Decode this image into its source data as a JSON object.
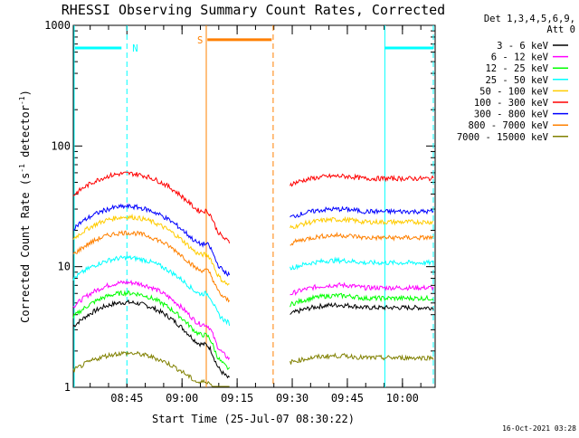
{
  "chart_data": {
    "type": "line",
    "title": "RHESSI Observing Summary Count Rates, Corrected",
    "xlabel": "Start Time (25-Jul-07 08:30:22)",
    "ylabel": "Corrected Count Rate (s",
    "ylabel_sup1": "-1",
    "ylabel_mid": " detector",
    "ylabel_sup2": "-1",
    "ylabel_end": ")",
    "yscale": "log",
    "ylim": [
      1,
      1000
    ],
    "y_ticks": [
      {
        "value": 1,
        "label": "1"
      },
      {
        "value": 10,
        "label": "10"
      },
      {
        "value": 100,
        "label": "100"
      },
      {
        "value": 1000,
        "label": "1000"
      }
    ],
    "x_range_minutes": [
      0,
      98.5
    ],
    "x_ticks": [
      {
        "minute": 14.6,
        "label": "08:45"
      },
      {
        "minute": 29.6,
        "label": "09:00"
      },
      {
        "minute": 44.6,
        "label": "09:15"
      },
      {
        "minute": 59.6,
        "label": "09:30"
      },
      {
        "minute": 74.6,
        "label": "09:45"
      },
      {
        "minute": 89.6,
        "label": "10:00"
      }
    ],
    "legend": {
      "header_line1": "Det 1,3,4,5,6,9,",
      "header_line2": "Att 0",
      "placement": "right"
    },
    "series": [
      {
        "name": "3 - 6 keV",
        "color": "#000000",
        "base": 1.62,
        "amp": 0.55
      },
      {
        "name": "6 - 12 keV",
        "color": "#ff00ff",
        "base": 2.0,
        "amp": 0.55
      },
      {
        "name": "12 - 25 keV",
        "color": "#00ff00",
        "base": 1.8,
        "amp": 0.55
      },
      {
        "name": "25 - 50 keV",
        "color": "#00ffff",
        "base": 2.47,
        "amp": 0.48
      },
      {
        "name": "50 - 100 keV",
        "color": "#ffcc00",
        "base": 3.25,
        "amp": 0.5
      },
      {
        "name": "100 - 300 keV",
        "color": "#ff0000",
        "base": 4.08,
        "amp": 0.5
      },
      {
        "name": "300 - 800 keV",
        "color": "#0000ff",
        "base": 3.45,
        "amp": 0.5
      },
      {
        "name": "800 - 7000 keV",
        "color": "#ff8000",
        "base": 2.95,
        "amp": 0.5
      },
      {
        "name": "7000 - 15000 keV",
        "color": "#808000",
        "base": 0.65,
        "amp": 0.4
      }
    ],
    "data_segments_minutes": [
      [
        0,
        42.5
      ],
      [
        59,
        98
      ]
    ],
    "peak_minutes": [
      14.6,
      72.0
    ],
    "flare_bump_minute": 37.0,
    "night_marker": {
      "label": "N",
      "color": "#00ffff",
      "dashed_minutes": [
        14.6,
        98.0
      ],
      "solid_minutes": [
        0,
        84.8
      ]
    },
    "saa_marker": {
      "label": "S",
      "color": "#ff8000",
      "solid_minute": 36.2,
      "dashed_minute": 54.4,
      "bar_minutes": [
        36.5,
        54.0
      ],
      "bar_level": 760
    }
  },
  "footer": {
    "timestamp": "16-Oct-2021 03:28"
  }
}
